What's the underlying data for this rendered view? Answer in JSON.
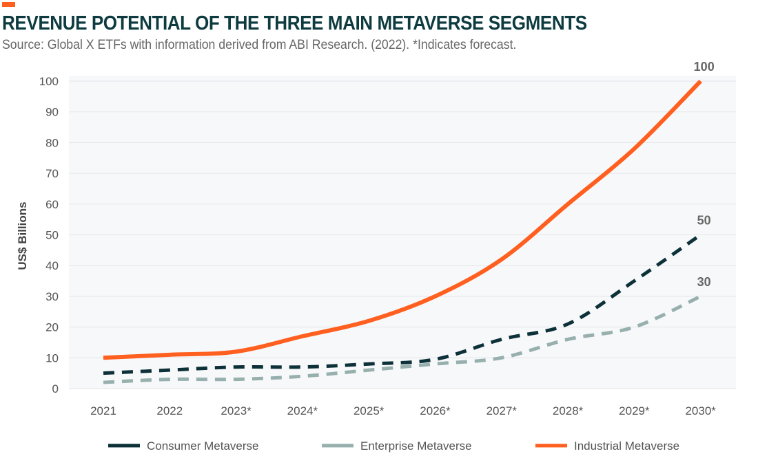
{
  "header": {
    "accent_color": "#ff5f1f",
    "title": "REVENUE POTENTIAL OF THE THREE MAIN METAVERSE SEGMENTS",
    "subtitle": "Source: Global X ETFs with information derived from ABI Research. (2022). *Indicates forecast."
  },
  "chart_data": {
    "type": "line",
    "title": "REVENUE POTENTIAL OF THE THREE MAIN METAVERSE SEGMENTS",
    "xlabel": "",
    "ylabel": "US$ Billions",
    "ylim": [
      0,
      100
    ],
    "yticks": [
      "0",
      "10",
      "20",
      "30",
      "40",
      "50",
      "60",
      "70",
      "80",
      "90",
      "100"
    ],
    "grid": true,
    "legend": "bottom",
    "categories": [
      "2021",
      "2022",
      "2023*",
      "2024*",
      "2025*",
      "2026*",
      "2027*",
      "2028*",
      "2029*",
      "2030*"
    ],
    "series": [
      {
        "name": "Consumer Metaverse",
        "color": "#0d3138",
        "style": "dashed",
        "values": [
          5,
          6,
          7,
          7,
          8,
          9.5,
          16,
          21,
          35,
          50
        ],
        "end_label": "50"
      },
      {
        "name": "Enterprise Metaverse",
        "color": "#97b0ae",
        "style": "dashed",
        "values": [
          2,
          3,
          3,
          4,
          6,
          8,
          10,
          16,
          20,
          30
        ],
        "end_label": "30"
      },
      {
        "name": "Industrial Metaverse",
        "color": "#ff5f1f",
        "style": "solid",
        "values": [
          10,
          11,
          12,
          17,
          22,
          30,
          42,
          60,
          78,
          100
        ],
        "end_label": "100"
      }
    ]
  }
}
